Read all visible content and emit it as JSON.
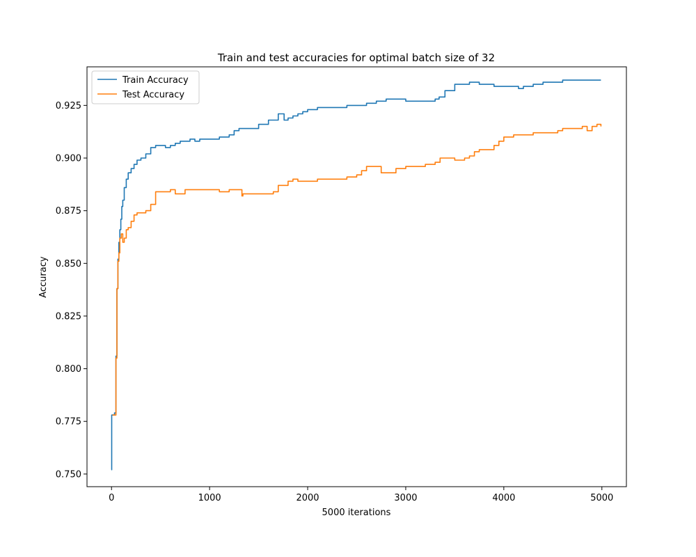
{
  "chart_data": {
    "type": "line",
    "title": "Train and test accuracies for optimal batch size of 32",
    "xlabel": "5000 iterations",
    "ylabel": "Accuracy",
    "xlim": [
      -250,
      5250
    ],
    "ylim": [
      0.744,
      0.9433
    ],
    "xticks": [
      0,
      1000,
      2000,
      3000,
      4000,
      5000
    ],
    "yticks": [
      0.75,
      0.775,
      0.8,
      0.825,
      0.85,
      0.875,
      0.9,
      0.925
    ],
    "xtick_labels": [
      "0",
      "1000",
      "2000",
      "3000",
      "4000",
      "5000"
    ],
    "ytick_labels": [
      "0.750",
      "0.775",
      "0.800",
      "0.825",
      "0.850",
      "0.875",
      "0.900",
      "0.925"
    ],
    "grid": false,
    "legend_position": "top-left",
    "series": [
      {
        "name": "Train Accuracy",
        "color": "#1f77b4",
        "points": [
          [
            0,
            0.752
          ],
          [
            2,
            0.778
          ],
          [
            20,
            0.778
          ],
          [
            30,
            0.779
          ],
          [
            45,
            0.806
          ],
          [
            55,
            0.838
          ],
          [
            65,
            0.852
          ],
          [
            75,
            0.86
          ],
          [
            85,
            0.866
          ],
          [
            95,
            0.871
          ],
          [
            105,
            0.877
          ],
          [
            115,
            0.88
          ],
          [
            130,
            0.886
          ],
          [
            150,
            0.89
          ],
          [
            170,
            0.893
          ],
          [
            200,
            0.895
          ],
          [
            230,
            0.897
          ],
          [
            260,
            0.899
          ],
          [
            300,
            0.9
          ],
          [
            350,
            0.902
          ],
          [
            400,
            0.905
          ],
          [
            450,
            0.906
          ],
          [
            500,
            0.906
          ],
          [
            550,
            0.905
          ],
          [
            600,
            0.906
          ],
          [
            650,
            0.907
          ],
          [
            700,
            0.908
          ],
          [
            750,
            0.908
          ],
          [
            800,
            0.909
          ],
          [
            850,
            0.908
          ],
          [
            900,
            0.909
          ],
          [
            1000,
            0.909
          ],
          [
            1100,
            0.91
          ],
          [
            1200,
            0.911
          ],
          [
            1250,
            0.913
          ],
          [
            1300,
            0.914
          ],
          [
            1400,
            0.914
          ],
          [
            1500,
            0.916
          ],
          [
            1600,
            0.918
          ],
          [
            1700,
            0.921
          ],
          [
            1740,
            0.921
          ],
          [
            1760,
            0.918
          ],
          [
            1800,
            0.919
          ],
          [
            1850,
            0.92
          ],
          [
            1900,
            0.921
          ],
          [
            1950,
            0.922
          ],
          [
            2000,
            0.923
          ],
          [
            2050,
            0.923
          ],
          [
            2100,
            0.924
          ],
          [
            2200,
            0.924
          ],
          [
            2300,
            0.924
          ],
          [
            2400,
            0.925
          ],
          [
            2500,
            0.925
          ],
          [
            2600,
            0.926
          ],
          [
            2700,
            0.927
          ],
          [
            2800,
            0.928
          ],
          [
            2900,
            0.928
          ],
          [
            3000,
            0.927
          ],
          [
            3100,
            0.927
          ],
          [
            3200,
            0.927
          ],
          [
            3300,
            0.928
          ],
          [
            3340,
            0.929
          ],
          [
            3400,
            0.932
          ],
          [
            3500,
            0.935
          ],
          [
            3600,
            0.935
          ],
          [
            3650,
            0.936
          ],
          [
            3700,
            0.936
          ],
          [
            3750,
            0.935
          ],
          [
            3800,
            0.935
          ],
          [
            3900,
            0.934
          ],
          [
            4000,
            0.934
          ],
          [
            4100,
            0.934
          ],
          [
            4150,
            0.933
          ],
          [
            4200,
            0.934
          ],
          [
            4300,
            0.935
          ],
          [
            4400,
            0.936
          ],
          [
            4500,
            0.936
          ],
          [
            4600,
            0.937
          ],
          [
            4700,
            0.937
          ],
          [
            4800,
            0.937
          ],
          [
            4900,
            0.937
          ],
          [
            4990,
            0.937
          ]
        ]
      },
      {
        "name": "Test Accuracy",
        "color": "#ff7f0e",
        "points": [
          [
            10,
            0.778
          ],
          [
            30,
            0.778
          ],
          [
            40,
            0.778
          ],
          [
            45,
            0.805
          ],
          [
            55,
            0.838
          ],
          [
            65,
            0.851
          ],
          [
            75,
            0.855
          ],
          [
            85,
            0.862
          ],
          [
            100,
            0.864
          ],
          [
            115,
            0.86
          ],
          [
            130,
            0.862
          ],
          [
            150,
            0.866
          ],
          [
            170,
            0.867
          ],
          [
            200,
            0.87
          ],
          [
            230,
            0.873
          ],
          [
            260,
            0.874
          ],
          [
            300,
            0.874
          ],
          [
            350,
            0.875
          ],
          [
            400,
            0.878
          ],
          [
            450,
            0.884
          ],
          [
            500,
            0.884
          ],
          [
            550,
            0.884
          ],
          [
            600,
            0.885
          ],
          [
            650,
            0.883
          ],
          [
            700,
            0.883
          ],
          [
            750,
            0.885
          ],
          [
            800,
            0.885
          ],
          [
            900,
            0.885
          ],
          [
            1000,
            0.885
          ],
          [
            1100,
            0.884
          ],
          [
            1200,
            0.885
          ],
          [
            1300,
            0.885
          ],
          [
            1330,
            0.882
          ],
          [
            1340,
            0.883
          ],
          [
            1400,
            0.883
          ],
          [
            1500,
            0.883
          ],
          [
            1600,
            0.883
          ],
          [
            1650,
            0.884
          ],
          [
            1700,
            0.887
          ],
          [
            1800,
            0.889
          ],
          [
            1850,
            0.89
          ],
          [
            1900,
            0.889
          ],
          [
            2000,
            0.889
          ],
          [
            2100,
            0.89
          ],
          [
            2200,
            0.89
          ],
          [
            2300,
            0.89
          ],
          [
            2400,
            0.891
          ],
          [
            2500,
            0.892
          ],
          [
            2550,
            0.894
          ],
          [
            2600,
            0.896
          ],
          [
            2700,
            0.896
          ],
          [
            2750,
            0.893
          ],
          [
            2800,
            0.893
          ],
          [
            2900,
            0.895
          ],
          [
            3000,
            0.896
          ],
          [
            3100,
            0.896
          ],
          [
            3200,
            0.897
          ],
          [
            3300,
            0.898
          ],
          [
            3350,
            0.9
          ],
          [
            3400,
            0.9
          ],
          [
            3450,
            0.9
          ],
          [
            3500,
            0.899
          ],
          [
            3550,
            0.899
          ],
          [
            3600,
            0.9
          ],
          [
            3650,
            0.901
          ],
          [
            3700,
            0.903
          ],
          [
            3750,
            0.904
          ],
          [
            3800,
            0.904
          ],
          [
            3850,
            0.904
          ],
          [
            3900,
            0.906
          ],
          [
            3950,
            0.908
          ],
          [
            4000,
            0.91
          ],
          [
            4100,
            0.911
          ],
          [
            4200,
            0.911
          ],
          [
            4300,
            0.912
          ],
          [
            4400,
            0.912
          ],
          [
            4500,
            0.912
          ],
          [
            4550,
            0.913
          ],
          [
            4600,
            0.914
          ],
          [
            4700,
            0.914
          ],
          [
            4800,
            0.915
          ],
          [
            4850,
            0.913
          ],
          [
            4900,
            0.915
          ],
          [
            4950,
            0.916
          ],
          [
            4990,
            0.915
          ]
        ]
      }
    ]
  }
}
